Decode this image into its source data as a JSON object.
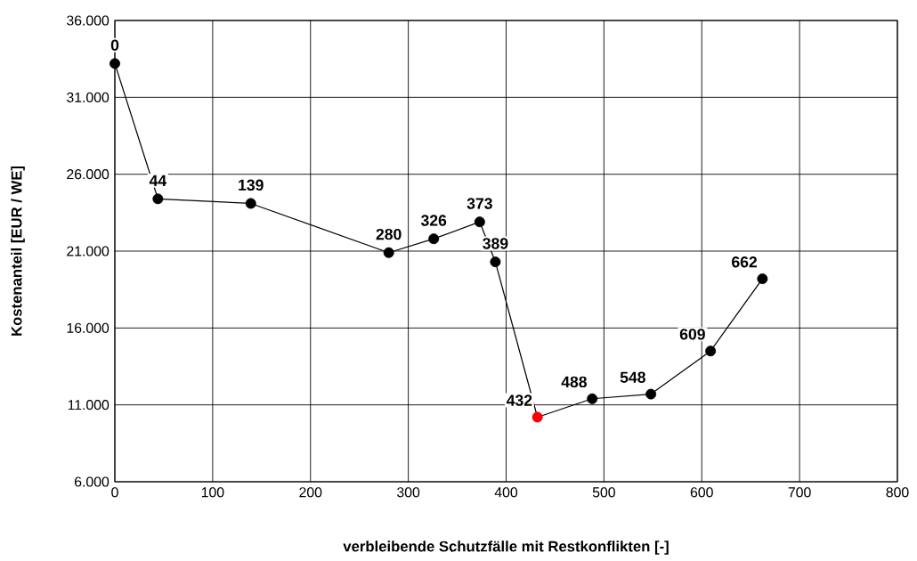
{
  "chart_data": {
    "type": "line",
    "xlabel": "verbleibende Schutzfälle mit Restkonflikten [-]",
    "ylabel": "Kostenanteil [EUR / WE]",
    "x": [
      0,
      44,
      139,
      280,
      326,
      373,
      389,
      432,
      488,
      548,
      609,
      662
    ],
    "values": [
      33200,
      24400,
      24100,
      20900,
      21800,
      22900,
      20300,
      10200,
      11400,
      11700,
      14500,
      19200
    ],
    "annotations": [
      {
        "text": "0",
        "x": 0,
        "y": 33200
      },
      {
        "text": "44",
        "x": 44,
        "y": 24400
      },
      {
        "text": "139",
        "x": 139,
        "y": 24100
      },
      {
        "text": "280",
        "x": 280,
        "y": 20900
      },
      {
        "text": "326",
        "x": 326,
        "y": 21800
      },
      {
        "text": "373",
        "x": 373,
        "y": 22900
      },
      {
        "text": "389",
        "x": 389,
        "y": 20300
      },
      {
        "text": "432",
        "x": 432,
        "y": 10200
      },
      {
        "text": "488",
        "x": 488,
        "y": 11400
      },
      {
        "text": "548",
        "x": 548,
        "y": 11700
      },
      {
        "text": "609",
        "x": 609,
        "y": 14500
      },
      {
        "text": "662",
        "x": 662,
        "y": 19200
      }
    ],
    "color": "#000000",
    "colors": [
      "#000000",
      "#000000",
      "#000000",
      "#000000",
      "#000000",
      "#000000",
      "#000000",
      "#ff0000",
      "#000000",
      "#000000",
      "#000000",
      "#000000"
    ],
    "marker": "circle",
    "line_style": "solid",
    "grid": true,
    "xlim": [
      0,
      800
    ],
    "xticks": [
      0,
      100,
      200,
      300,
      400,
      500,
      600,
      700,
      800
    ],
    "ylim": [
      6000,
      36000
    ],
    "yticks": [
      {
        "value": 6000,
        "label": "6.000"
      },
      {
        "value": 11000,
        "label": "11.000"
      },
      {
        "value": 16000,
        "label": "16.000"
      },
      {
        "value": 21000,
        "label": "21.000"
      },
      {
        "value": 26000,
        "label": "26.000"
      },
      {
        "value": 31000,
        "label": "31.000"
      },
      {
        "value": 36000,
        "label": "36.000"
      }
    ]
  }
}
